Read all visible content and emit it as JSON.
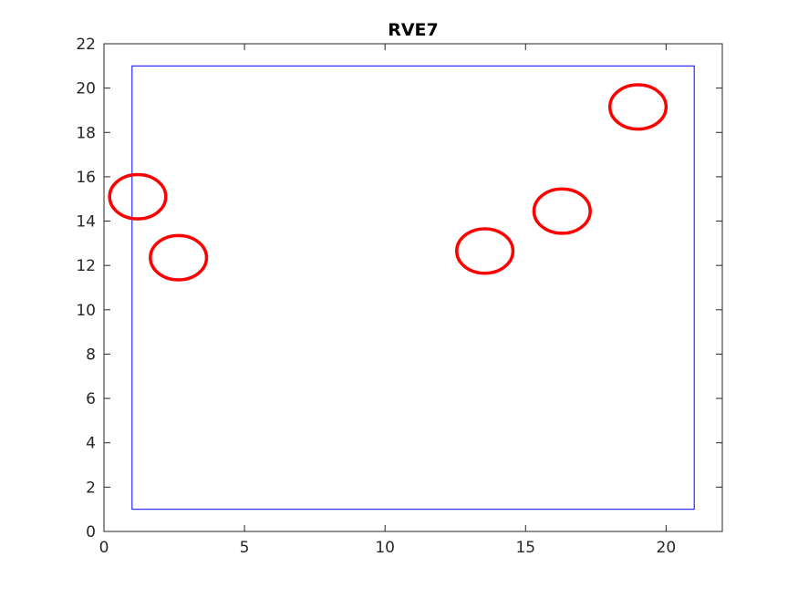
{
  "chart_data": {
    "type": "scatter",
    "title": "RVE7",
    "xlabel": "",
    "ylabel": "",
    "xlim": [
      0,
      22
    ],
    "ylim": [
      0,
      22
    ],
    "x_ticks": [
      0,
      5,
      10,
      15,
      20
    ],
    "y_ticks": [
      0,
      2,
      4,
      6,
      8,
      10,
      12,
      14,
      16,
      18,
      20,
      22
    ],
    "grid": false,
    "boundary": {
      "x0": 1,
      "y0": 1,
      "x1": 21,
      "y1": 21,
      "color": "#0000ff"
    },
    "circle_radius": 1.0,
    "circle_color": "#ff0000",
    "circles": [
      {
        "x": 1.2,
        "y": 15.1
      },
      {
        "x": 2.65,
        "y": 12.35
      },
      {
        "x": 13.55,
        "y": 12.65
      },
      {
        "x": 16.3,
        "y": 14.45
      },
      {
        "x": 19.0,
        "y": 19.15
      }
    ]
  }
}
